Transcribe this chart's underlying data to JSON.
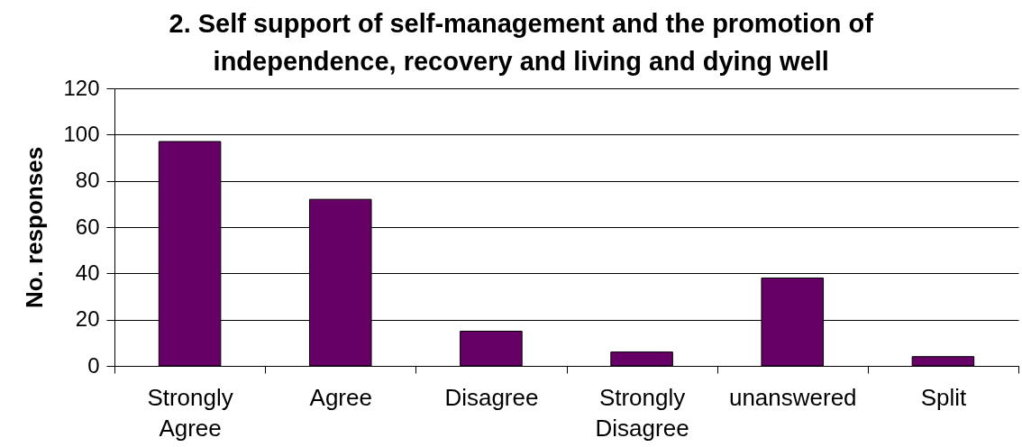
{
  "chart_data": {
    "type": "bar",
    "title": "2. Self support of self-management and the promotion of independence, recovery and living and dying well",
    "ylabel": "No. responses",
    "categories": [
      "Strongly Agree",
      "Agree",
      "Disagree",
      "Strongly Disagree",
      "unanswered",
      "Split"
    ],
    "values": [
      97,
      72,
      15,
      6,
      38,
      4
    ],
    "color": "#660066",
    "ylim": [
      0,
      120
    ],
    "yticks": [
      0,
      20,
      40,
      60,
      80,
      100,
      120
    ],
    "grid": "y"
  }
}
